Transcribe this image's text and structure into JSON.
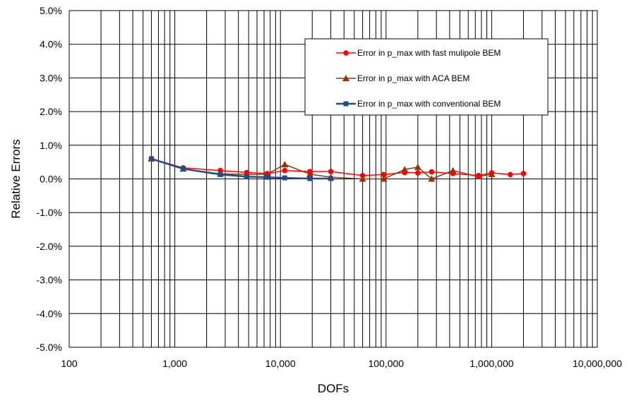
{
  "chart_data": {
    "type": "line",
    "xlabel": "DOFs",
    "ylabel": "Relative Errors",
    "xscale": "log",
    "xlim": [
      100,
      10000000
    ],
    "ylim": [
      -5.0,
      5.0
    ],
    "x_ticks": [
      100,
      1000,
      10000,
      100000,
      1000000,
      10000000
    ],
    "x_tick_labels": [
      "100",
      "1,000",
      "10,000",
      "100,000",
      "1,000,000",
      "10,000,000"
    ],
    "y_ticks": [
      5.0,
      4.0,
      3.0,
      2.0,
      1.0,
      0.0,
      -1.0,
      -2.0,
      -3.0,
      -4.0,
      -5.0
    ],
    "y_tick_labels": [
      "5.0%",
      "4.0%",
      "3.0%",
      "2.0%",
      "1.0%",
      "0.0%",
      "-1.0%",
      "-2.0%",
      "-3.0%",
      "-4.0%",
      "-5.0%"
    ],
    "grid": true,
    "legend_position": "top-right",
    "series": [
      {
        "name": "Error in p_max with fast mulipole BEM",
        "color": "#ff0000",
        "marker": "circle",
        "x": [
          600,
          1200,
          2700,
          4800,
          7500,
          11000,
          19000,
          30000,
          60000,
          95000,
          150000,
          200000,
          270000,
          430000,
          750000,
          1000000,
          1500000,
          2000000
        ],
        "y": [
          0.6,
          0.33,
          0.25,
          0.19,
          0.16,
          0.25,
          0.22,
          0.22,
          0.1,
          0.13,
          0.19,
          0.18,
          0.21,
          0.16,
          0.1,
          0.18,
          0.13,
          0.16
        ]
      },
      {
        "name": "Error in p_max with ACA BEM",
        "color": "#8b3a0f",
        "marker": "triangle",
        "x": [
          600,
          1200,
          2700,
          4800,
          7500,
          11000,
          19000,
          30000,
          60000,
          95000,
          150000,
          200000,
          270000,
          430000,
          750000,
          1000000
        ],
        "y": [
          0.6,
          0.3,
          0.15,
          0.13,
          0.14,
          0.43,
          0.14,
          0.05,
          0.0,
          0.0,
          0.28,
          0.35,
          0.0,
          0.25,
          0.07,
          0.14
        ]
      },
      {
        "name": "Error in p_max with conventional BEM",
        "color": "#1f4e8c",
        "marker": "square",
        "x": [
          600,
          1200,
          2700,
          4800,
          7500,
          11000,
          19000,
          30000
        ],
        "y": [
          0.6,
          0.3,
          0.13,
          0.07,
          0.05,
          0.03,
          0.01,
          0.01
        ]
      }
    ]
  }
}
